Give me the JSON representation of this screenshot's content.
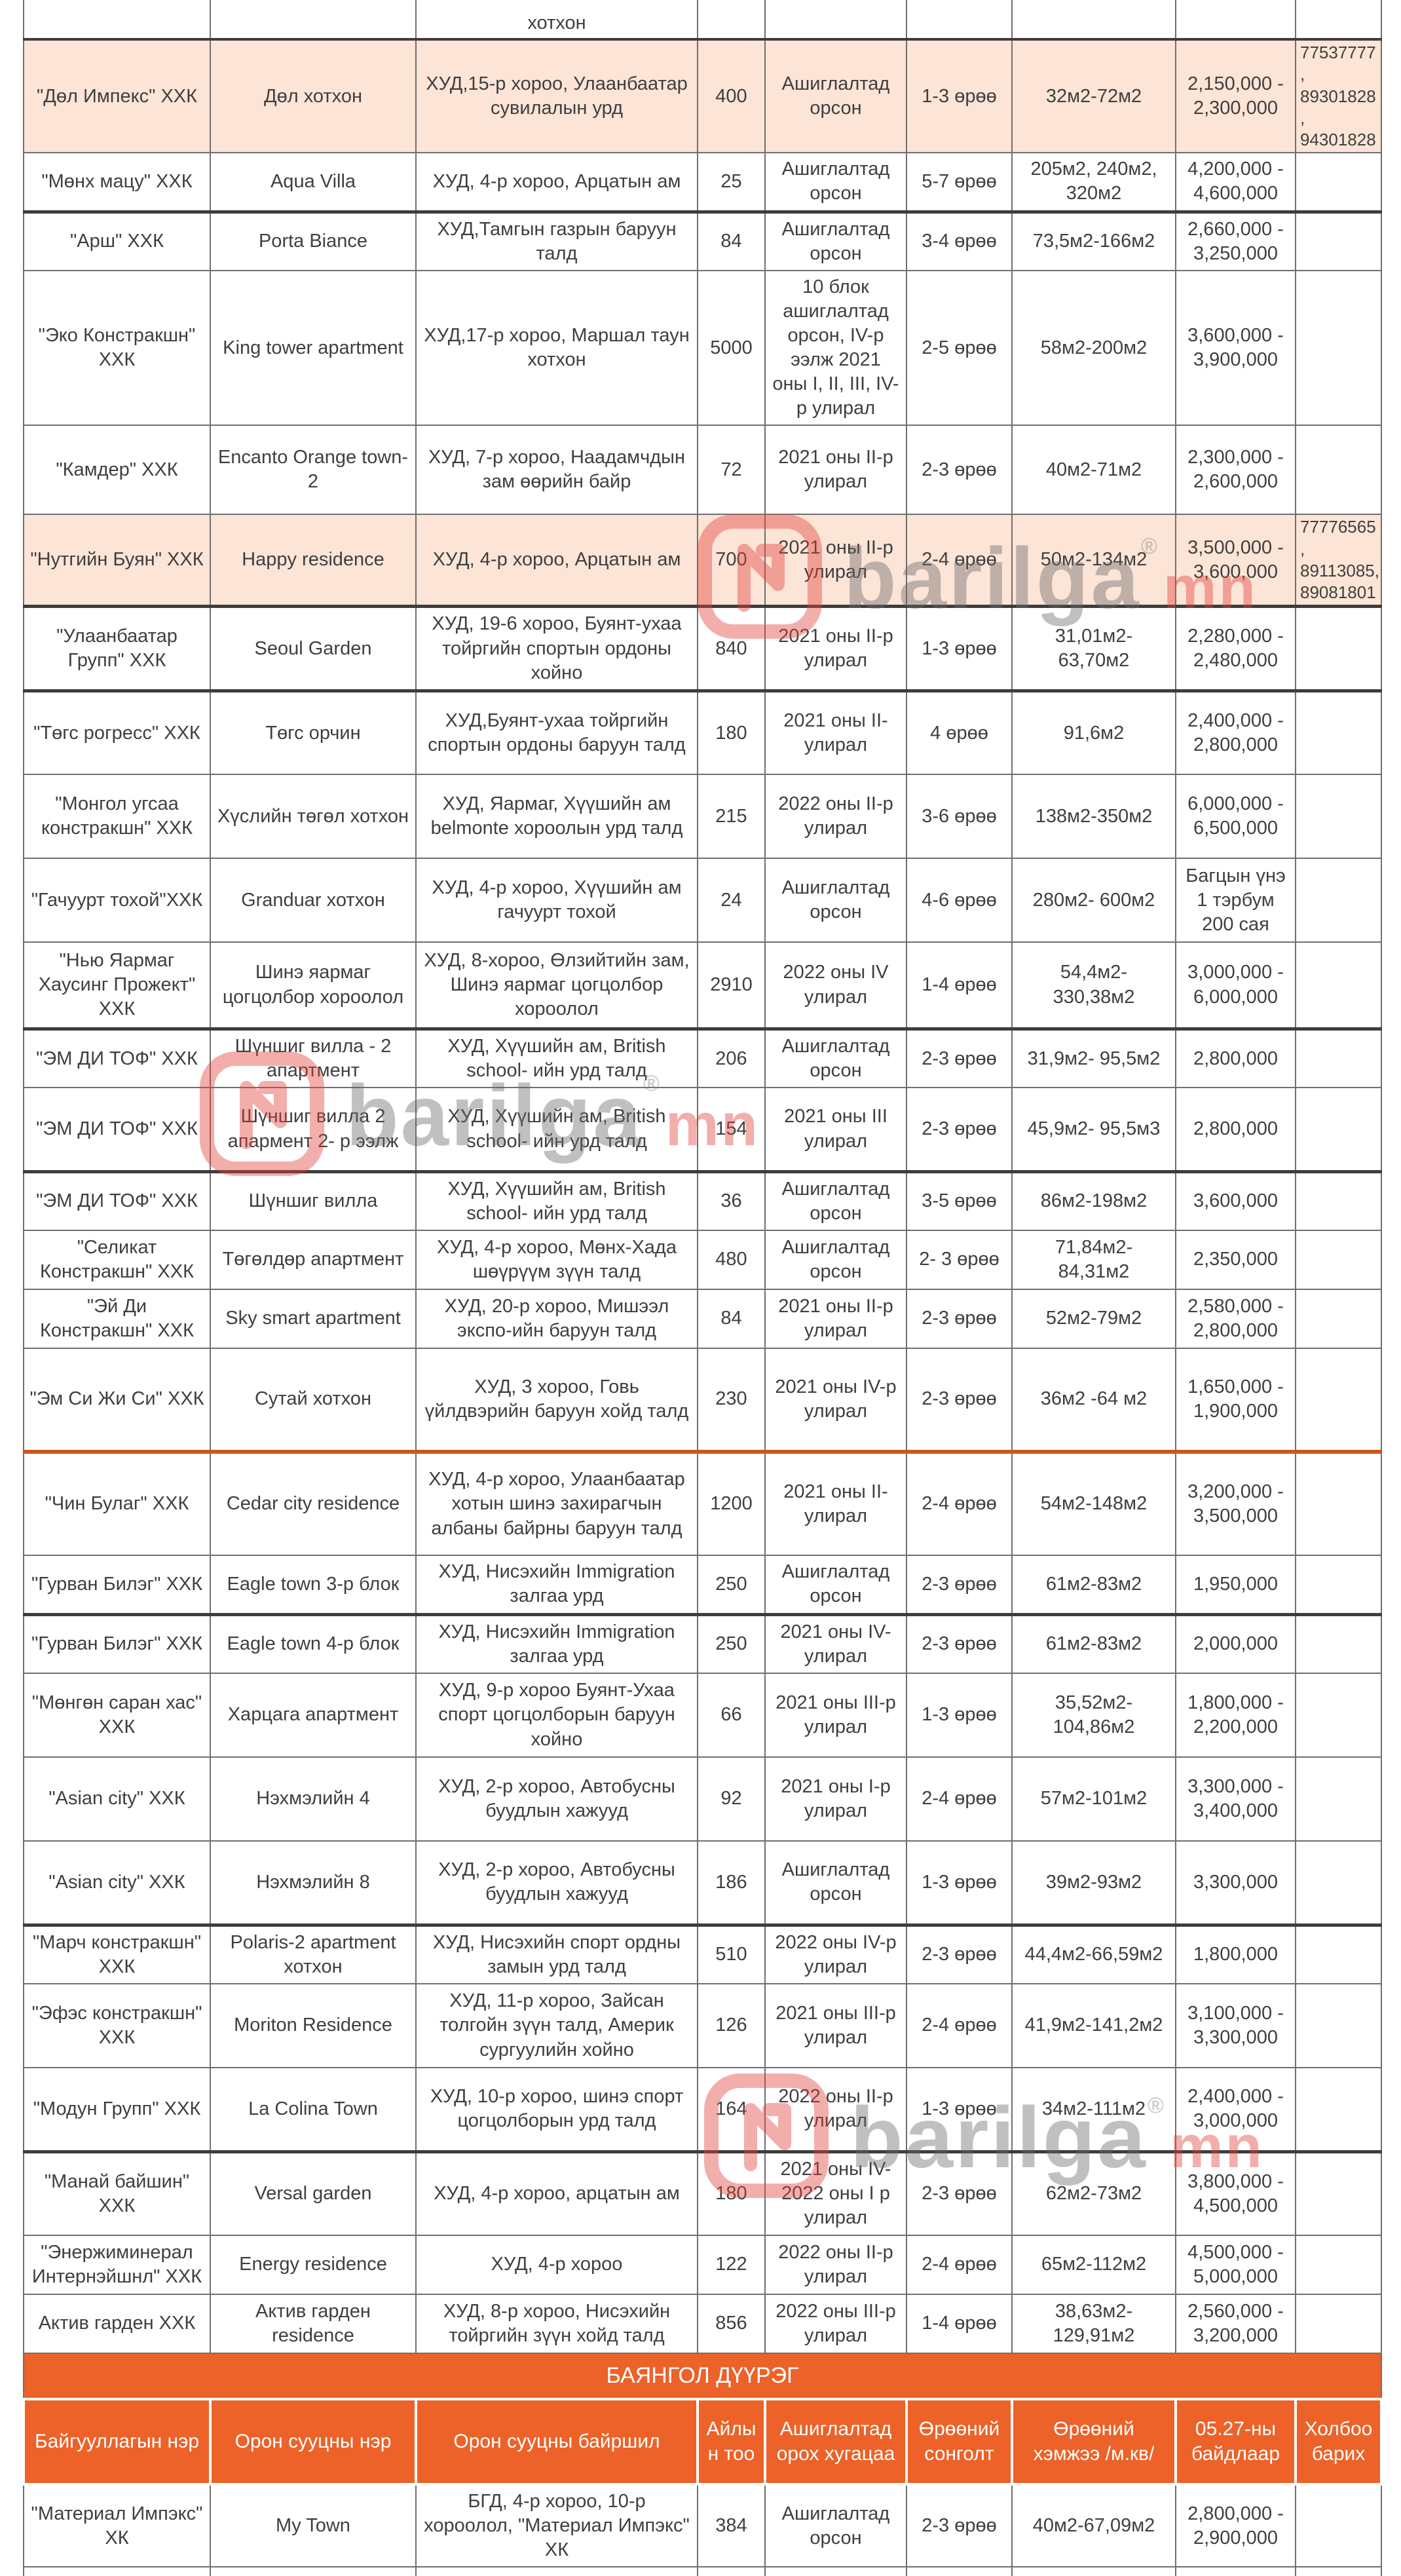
{
  "colors": {
    "header_bg": "#ec6228",
    "highlight_bg": "#fce4d6",
    "divider": "#c8581b"
  },
  "watermark": {
    "brand": "barilga",
    "tld": "mn",
    "registered": "®"
  },
  "top_partial_location": "хотхон",
  "table": {
    "columns": [
      "Байгууллагын нэр",
      "Орон сууцны нэр",
      "Орон сууцны байршил",
      "Айлын тоо",
      "Ашиглалтад орох хугацаа",
      "Өрөөний сонголт",
      "Өрөөний хэмжээ /м.кв/",
      "05.27-ны байдлаар",
      "Холбоо барих"
    ],
    "section_title": "БАЯНГОЛ ДҮҮРЭГ",
    "khud_rows": [
      {
        "company": "\"Дөл Импекс\" ХХК",
        "name": "Дөл хотхон",
        "location": "ХУД,15-р хороо, Улаанбаатар сувилалын урд",
        "count": "400",
        "usage": "Ашиглалтад орсон",
        "rooms": "1-3 өрөө",
        "size": "32м2-72м2",
        "price": "2,150,000 - 2,300,000",
        "contact": "77537777, 89301828, 94301828",
        "highlight": true
      },
      {
        "company": "\"Мөнх мацу\" ХХК",
        "name": "Aqua Villa",
        "location": "ХУД, 4-р хороо, Арцатын ам",
        "count": "25",
        "usage": "Ашиглалтад орсон",
        "rooms": "5-7 өрөө",
        "size": "205м2, 240м2, 320м2",
        "price": "4,200,000 - 4,600,000",
        "contact": ""
      },
      {
        "company": "\"Арш\" ХХК",
        "name": "Porta Biance",
        "location": "ХУД,Тамгын газрын баруун талд",
        "count": "84",
        "usage": "Ашиглалтад орсон",
        "rooms": "3-4 өрөө",
        "size": "73,5м2-166м2",
        "price": "2,660,000 - 3,250,000",
        "contact": ""
      },
      {
        "company": "\"Эко Констракшн\" ХХК",
        "name": "King tower apartment",
        "location": "ХУД,17-р хороо, Маршал таун хотхон",
        "count": "5000",
        "usage": "10 блок ашиглалтад орсон, IV-р ээлж 2021 оны I, II, III, IV-р улирал",
        "rooms": "2-5 өрөө",
        "size": "58м2-200м2",
        "price": "3,600,000 - 3,900,000",
        "contact": ""
      },
      {
        "company": "\"Камдер\" ХХК",
        "name": "Encanto Orange town-2",
        "location": "ХУД, 7-р хороо, Наадамчдын зам өөрийн байр",
        "count": "72",
        "usage": "2021 оны II-р улирал",
        "rooms": "2-3 өрөө",
        "size": "40м2-71м2",
        "price": "2,300,000 - 2,600,000",
        "contact": ""
      },
      {
        "company": "\"Нутгийн Буян\" ХХК",
        "name": "Happy residence",
        "location": "ХУД, 4-р хороо, Арцатын ам",
        "count": "700",
        "usage": "2021 оны II-р улирал",
        "rooms": "2-4 өрөө",
        "size": "50м2-134м2",
        "price": "3,500,000 - 3,600,000",
        "contact": "77776565, 89113085, 89081801",
        "highlight": true
      },
      {
        "company": "\"Улаанбаатар Групп\" ХХК",
        "name": "Seoul Garden",
        "location": "ХУД, 19-6 хороо, Буянт-ухаа тойргийн спортын ордоны хойно",
        "count": "840",
        "usage": "2021 оны II-р улирал",
        "rooms": "1-3 өрөө",
        "size": "31,01м2- 63,70м2",
        "price": "2,280,000 - 2,480,000",
        "contact": ""
      },
      {
        "company": "\"Төгс рогресс\" ХХК",
        "name": "Төгс орчин",
        "location": "ХУД,Буянт-ухаа тойргийн спортын ордоны баруун талд",
        "count": "180",
        "usage": "2021 оны II-улирал",
        "rooms": "4 өрөө",
        "size": "91,6м2",
        "price": "2,400,000 - 2,800,000",
        "contact": ""
      },
      {
        "company": "\"Монгол угсаа констракшн\" ХХК",
        "name": "Хүслийн төгөл хотхон",
        "location": "ХУД, Яармаг, Хүүшийн ам belmonte хороолын урд талд",
        "count": "215",
        "usage": "2022 оны II-р улирал",
        "rooms": "3-6 өрөө",
        "size": "138м2-350м2",
        "price": "6,000,000 - 6,500,000",
        "contact": ""
      },
      {
        "company": "\"Гачуурт тохой\"ХХК",
        "name": "Granduar хотхон",
        "location": "ХУД, 4-р хороо, Хүүшийн ам гачуурт тохой",
        "count": "24",
        "usage": "Ашиглалтад орсон",
        "rooms": "4-6 өрөө",
        "size": "280м2- 600м2",
        "price": "Багцын үнэ 1 тэрбум 200 сая",
        "contact": ""
      },
      {
        "company": "\"Нью Яармаг Хаусинг Прожект\" ХХК",
        "name": "Шинэ яармаг цогцолбор хороолол",
        "location": "ХУД, 8-хороо, Өлзийтийн зам, Шинэ яармаг цогцолбор хороолол",
        "count": "2910",
        "usage": "2022 оны IV улирал",
        "rooms": "1-4 өрөө",
        "size": "54,4м2- 330,38м2",
        "price": "3,000,000 - 6,000,000",
        "contact": ""
      },
      {
        "company": "\"ЭМ ДИ ТОФ\" ХХК",
        "name": "Шүншиг вилла - 2 апартмент",
        "location": "ХУД, Хүүшийн ам, British school- ийн урд талд",
        "count": "206",
        "usage": "Ашиглалтад орсон",
        "rooms": "2-3 өрөө",
        "size": "31,9м2- 95,5м2",
        "price": "2,800,000",
        "contact": ""
      },
      {
        "company": "\"ЭМ ДИ ТОФ\" ХХК",
        "name": "Шүншиг вилла 2 апармент 2- р ээлж",
        "location": "ХУД, Хүүшийн ам, British school- ийн урд талд",
        "count": "154",
        "usage": "2021 оны III улирал",
        "rooms": "2-3 өрөө",
        "size": "45,9м2- 95,5м3",
        "price": "2,800,000",
        "contact": ""
      },
      {
        "company": "\"ЭМ ДИ ТОФ\" ХХК",
        "name": "Шүншиг вилла",
        "location": "ХУД, Хүүшийн ам, British school- ийн урд талд",
        "count": "36",
        "usage": "Ашиглалтад орсон",
        "rooms": "3-5 өрөө",
        "size": "86м2-198м2",
        "price": "3,600,000",
        "contact": ""
      },
      {
        "company": "\"Селикат Констракшн\" ХХК",
        "name": "Төгөлдөр апартмент",
        "location": "ХУД, 4-р хороо, Мөнх-Хада шөүрүүм зүүн талд",
        "count": "480",
        "usage": "Ашиглалтад орсон",
        "rooms": "2- 3 өрөө",
        "size": "71,84м2- 84,31м2",
        "price": "2,350,000",
        "contact": ""
      },
      {
        "company": "\"Эй Ди Констракшн\" ХХК",
        "name": "Sky smart apartment",
        "location": "ХУД, 20-р хороо, Мишээл экспо-ийн баруун талд",
        "count": "84",
        "usage": "2021 оны II-р улирал",
        "rooms": "2-3 өрөө",
        "size": "52м2-79м2",
        "price": "2,580,000 - 2,800,000",
        "contact": ""
      },
      {
        "company": "\"Эм Си Жи Си\" ХХК",
        "name": "Сутай хотхон",
        "location": "ХУД, 3 хороо, Говь үйлдвэрийн баруун хойд талд",
        "count": "230",
        "usage": "2021 оны IV-р улирал",
        "rooms": "2-3 өрөө",
        "size": "36м2 -64 м2",
        "price": "1,650,000 - 1,900,000",
        "contact": ""
      },
      {
        "company": "\"Чин Булаг\" ХХК",
        "name": "Cedar city residence",
        "location": "ХУД, 4-р хороо, Улаанбаатар хотын шинэ захирагчын албаны байрны баруун талд",
        "count": "1200",
        "usage": "2021 оны II-улирал",
        "rooms": "2-4 өрөө",
        "size": "54м2-148м2",
        "price": "3,200,000 - 3,500,000",
        "contact": ""
      },
      {
        "company": "\"Гурван Билэг\" ХХК",
        "name": "Eagle town 3-р блок",
        "location": "ХУД, Нисэхийн Immigration залгаа урд",
        "count": "250",
        "usage": "Ашиглалтад орсон",
        "rooms": "2-3 өрөө",
        "size": "61м2-83м2",
        "price": "1,950,000",
        "contact": ""
      },
      {
        "company": "\"Гурван Билэг\" ХХК",
        "name": "Eagle town 4-р блок",
        "location": "ХУД, Нисэхийн Immigration залгаа урд",
        "count": "250",
        "usage": "2021 оны IV-улирал",
        "rooms": "2-3 өрөө",
        "size": "61м2-83м2",
        "price": "2,000,000",
        "contact": ""
      },
      {
        "company": "\"Мөнгөн саран хас\" ХХК",
        "name": "Харцага апартмент",
        "location": "ХУД, 9-р хороо Буянт-Ухаа спорт цогцолборын баруун хойно",
        "count": "66",
        "usage": "2021 оны III-р улирал",
        "rooms": "1-3 өрөө",
        "size": "35,52м2- 104,86м2",
        "price": "1,800,000 - 2,200,000",
        "contact": ""
      },
      {
        "company": "\"Asian city\" ХХК",
        "name": "Нэхмэлийн 4",
        "location": "ХУД, 2-р хороо, Автобусны буудлын хажууд",
        "count": "92",
        "usage": "2021 оны I-р улирал",
        "rooms": "2-4 өрөө",
        "size": "57м2-101м2",
        "price": "3,300,000 - 3,400,000",
        "contact": ""
      },
      {
        "company": "\"Asian city\" ХХК",
        "name": "Нэхмэлийн 8",
        "location": "ХУД, 2-р хороо, Автобусны буудлын хажууд",
        "count": "186",
        "usage": "Ашиглалтад орсон",
        "rooms": "1-3 өрөө",
        "size": "39м2-93м2",
        "price": "3,300,000",
        "contact": ""
      },
      {
        "company": "\"Марч констракшн\" ХХК",
        "name": "Polaris-2 apartment хотхон",
        "location": "ХУД, Нисэхийн спорт ордны замын урд талд",
        "count": "510",
        "usage": "2022 оны IV-р улирал",
        "rooms": "2-3 өрөө",
        "size": "44,4м2-66,59м2",
        "price": "1,800,000",
        "contact": ""
      },
      {
        "company": "\"Эфэс констракшн\" ХХК",
        "name": "Moriton Residence",
        "location": "ХУД, 11-р хороо, Зайсан толгойн зүүн талд, Америк сургуулийн хойно",
        "count": "126",
        "usage": "2021 оны III-р улирал",
        "rooms": "2-4 өрөө",
        "size": "41,9м2-141,2м2",
        "price": "3,100,000 - 3,300,000",
        "contact": ""
      },
      {
        "company": "\"Модун Групп\" ХХК",
        "name": "La Colina Town",
        "location": "ХУД, 10-р хороо, шинэ спорт цогцолборын урд талд",
        "count": "164",
        "usage": "2022 оны II-р улирал",
        "rooms": "1-3 өрөө",
        "size": "34м2-111м2",
        "price": "2,400,000 - 3,000,000",
        "contact": ""
      },
      {
        "company": "\"Манай байшин\" ХХК",
        "name": "Versal garden",
        "location": "ХУД, 4-р хороо, арцатын ам",
        "count": "180",
        "usage": "2021 оны IV- 2022 оны I р улирал",
        "rooms": "2-3 өрөө",
        "size": "62м2-73м2",
        "price": "3,800,000 - 4,500,000",
        "contact": ""
      },
      {
        "company": "\"Энержиминерал Интернэйшнл\" ХХК",
        "name": "Energy residence",
        "location": "ХУД, 4-р хороо",
        "count": "122",
        "usage": "2022 оны II-р улирал",
        "rooms": "2-4 өрөө",
        "size": "65м2-112м2",
        "price": "4,500,000 - 5,000,000",
        "contact": ""
      },
      {
        "company": "Актив гарден ХХК",
        "name": "Актив гарден residence",
        "location": "ХУД, 8-р хороо, Нисэхийн тойргийн зүүн хойд талд",
        "count": "856",
        "usage": "2022 оны III-р улирал",
        "rooms": "1-4 өрөө",
        "size": "38,63м2- 129,91м2",
        "price": "2,560,000 - 3,200,000",
        "contact": ""
      }
    ],
    "bgd_rows": [
      {
        "company": "\"Материал Импэкс\" ХК",
        "name": "My Town",
        "location": "БГД, 4-р хороо, 10-р хороолол, \"Материал Импэкс\" ХК",
        "count": "384",
        "usage": "Ашиглалтад орсон",
        "rooms": "2-3 өрөө",
        "size": "40м2-67,09м2",
        "price": "2,800,000 - 2,900,000",
        "contact": ""
      }
    ]
  }
}
